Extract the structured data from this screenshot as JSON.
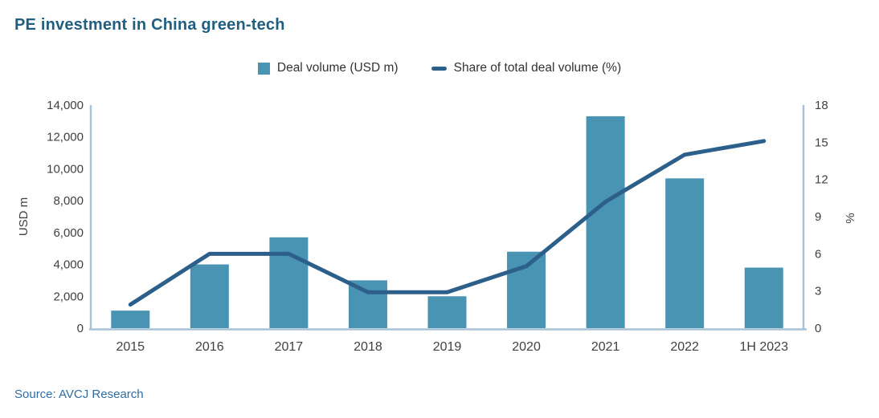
{
  "title": "PE investment in China green-tech",
  "source": "Source: AVCJ Research",
  "legend": [
    {
      "label": "Deal volume (USD m)",
      "marker": "square",
      "color": "#4993B3"
    },
    {
      "label": "Share of total deal volume (%)",
      "marker": "line",
      "color": "#2D5F8B"
    }
  ],
  "colors": {
    "title": "#215E80",
    "source": "#2E6DA4",
    "axis_line": "#A9C2D6",
    "tick_text": "#404040",
    "bar": "#4993B3",
    "line": "#2D5F8B",
    "background": "#FFFFFF"
  },
  "chart_data": {
    "type": "bar",
    "subtype": "combo bar + line, dual y-axis",
    "title": "PE investment in China green-tech",
    "categories": [
      "2015",
      "2016",
      "2017",
      "2018",
      "2019",
      "2020",
      "2021",
      "2022",
      "1H 2023"
    ],
    "series": [
      {
        "name": "Deal volume (USD m)",
        "type": "bar",
        "axis": "left",
        "color": "#4993B3",
        "values": [
          1100,
          4000,
          5700,
          3000,
          2000,
          4800,
          13300,
          9400,
          3800
        ]
      },
      {
        "name": "Share of total deal volume (%)",
        "type": "line",
        "axis": "right",
        "color": "#2D5F8B",
        "values": [
          1.9,
          6.0,
          6.0,
          2.9,
          2.9,
          5.0,
          10.2,
          14.0,
          15.1
        ]
      }
    ],
    "left_axis": {
      "label": "USD m",
      "min": 0,
      "max": 14000,
      "tick_values": [
        0,
        2000,
        4000,
        6000,
        8000,
        10000,
        12000,
        14000
      ],
      "tick_labels": [
        "0",
        "2,000",
        "4,000",
        "6,000",
        "8,000",
        "10,000",
        "12,000",
        "14,000"
      ]
    },
    "right_axis": {
      "label": "%",
      "min": 0,
      "max": 18,
      "tick_values": [
        0,
        3,
        6,
        9,
        12,
        15,
        18
      ],
      "tick_labels": [
        "0",
        "3",
        "6",
        "9",
        "12",
        "15",
        "18"
      ]
    },
    "grid": false,
    "legend_position": "top-center"
  }
}
